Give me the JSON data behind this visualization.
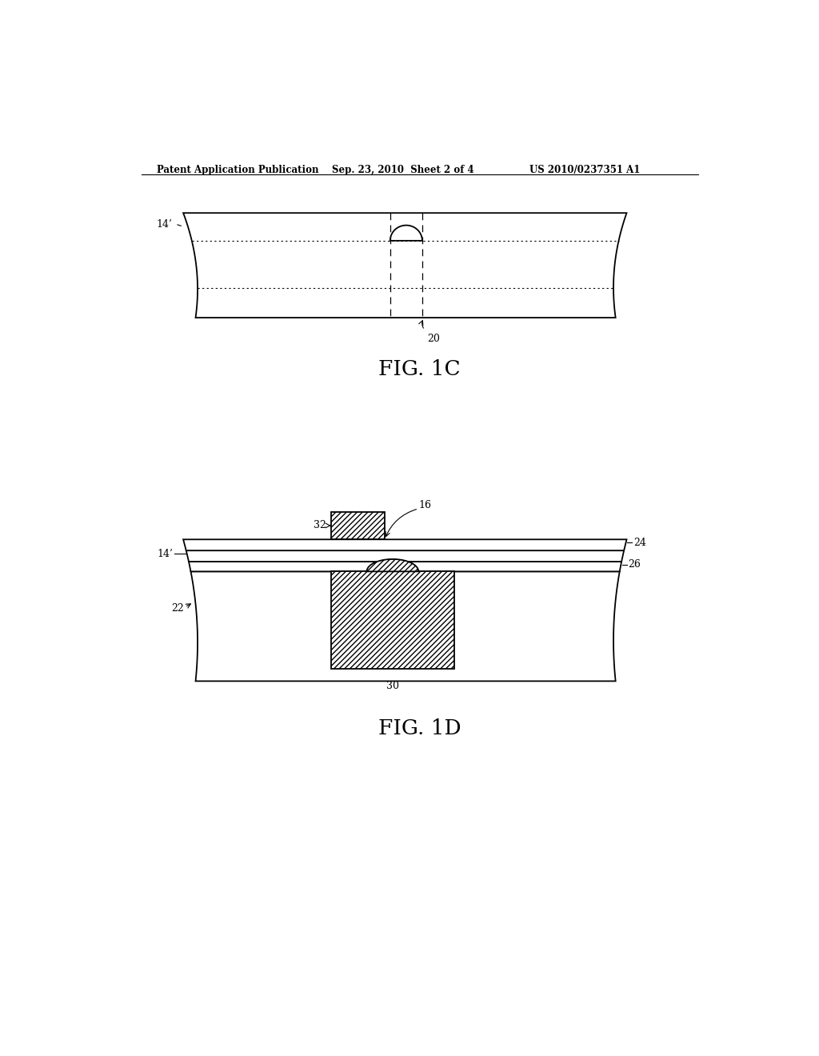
{
  "header_left": "Patent Application Publication",
  "header_mid": "Sep. 23, 2010  Sheet 2 of 4",
  "header_right": "US 2010/0237351 A1",
  "fig1c_label": "FIG. 1C",
  "fig1d_label": "FIG. 1D",
  "label_14prime_1c": "14’",
  "label_20": "20",
  "label_14prime_1d": "14’",
  "label_22": "22",
  "label_24": "24",
  "label_26": "26",
  "label_30": "30",
  "label_32": "32",
  "label_16": "16",
  "bg_color": "#ffffff",
  "line_color": "#000000"
}
